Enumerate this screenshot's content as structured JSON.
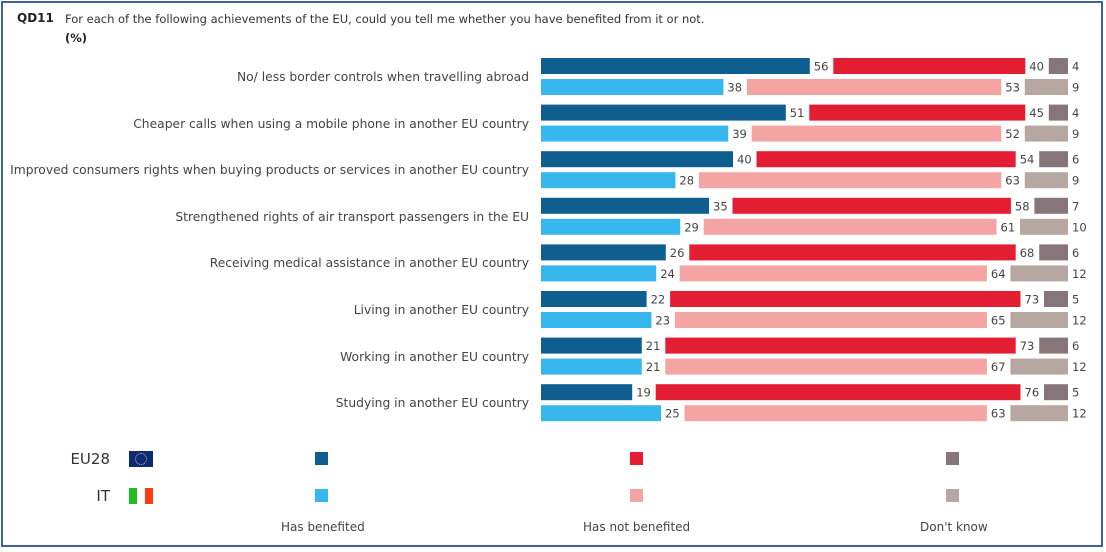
{
  "question": {
    "code": "QD11",
    "text": "For each of the following achievements of the EU, could you tell me whether you have benefited from it or not.",
    "unit": "(%)"
  },
  "colors": {
    "eu_benefited": "#0e5f8f",
    "eu_not_benefited": "#e31e33",
    "eu_dont_know": "#86767a",
    "it_benefited": "#38b7ee",
    "it_not_benefited": "#f4a4a2",
    "it_dont_know": "#b6a8a1",
    "frame": "#3e64a0"
  },
  "legend": {
    "countries": [
      {
        "label": "EU28",
        "flag": "eu-flag-icon"
      },
      {
        "label": "IT",
        "flag": "italy-flag-icon"
      }
    ],
    "series": [
      "Has benefited",
      "Has not benefited",
      "Don't know"
    ]
  },
  "chart_data": {
    "type": "bar",
    "orientation": "horizontal-stacked-100",
    "title": "QD11 For each of the following achievements of the EU, could you tell me whether you have benefited from it or not. (%)",
    "series_names": [
      "Has benefited",
      "Has not benefited",
      "Don't know"
    ],
    "groups": [
      "EU28",
      "IT"
    ],
    "categories": [
      "No/ less border controls when travelling abroad",
      "Cheaper calls when using a mobile phone in another EU country",
      "Improved consumers rights when buying products or services in another EU country",
      "Strengthened rights of air transport passengers in the EU",
      "Receiving medical assistance in another EU country",
      "Living in another EU country",
      "Working in another EU country",
      "Studying in another EU country"
    ],
    "values": {
      "EU28": [
        [
          56,
          40,
          4
        ],
        [
          51,
          45,
          4
        ],
        [
          40,
          54,
          6
        ],
        [
          35,
          58,
          7
        ],
        [
          26,
          68,
          6
        ],
        [
          22,
          73,
          5
        ],
        [
          21,
          73,
          6
        ],
        [
          19,
          76,
          5
        ]
      ],
      "IT": [
        [
          38,
          53,
          9
        ],
        [
          39,
          52,
          9
        ],
        [
          28,
          63,
          9
        ],
        [
          29,
          61,
          10
        ],
        [
          24,
          64,
          12
        ],
        [
          23,
          65,
          12
        ],
        [
          21,
          67,
          12
        ],
        [
          25,
          63,
          12
        ]
      ]
    },
    "xlim": [
      0,
      100
    ],
    "grid": false,
    "legend_position": "bottom"
  }
}
